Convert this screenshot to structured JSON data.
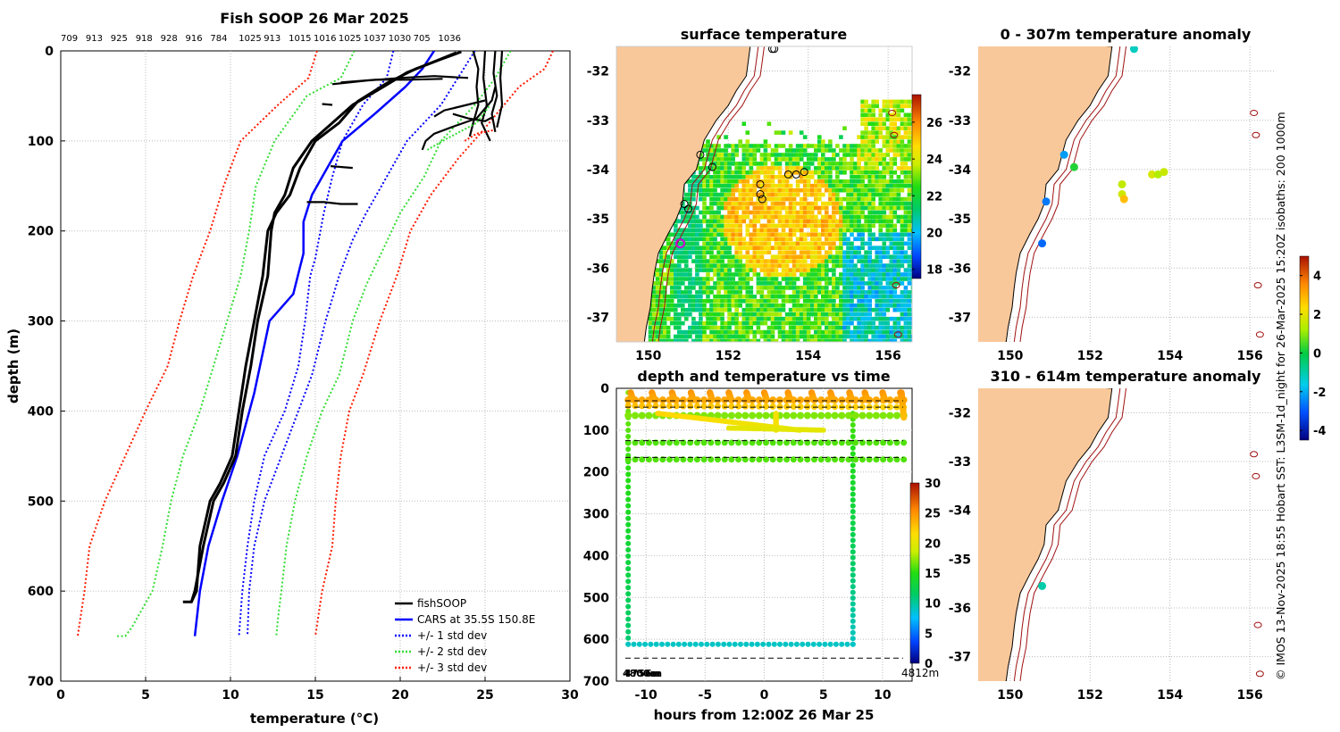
{
  "main_title": "Fish SOOP 26 Mar 2025",
  "drop_ids": [
    "709",
    "913",
    "925",
    "918",
    "928",
    "916",
    "784",
    "1025",
    "913",
    "1015",
    "1016",
    "1025",
    "1037",
    "1030",
    "705",
    "1036"
  ],
  "side_text": "© IMOS 13-Nov-2025 18:55 Hobart SST: L3SM-1d_night for 26-Mar-2025 15:20Z isobaths: 200  1000m",
  "colors": {
    "land": "#f9c89a",
    "fishsoop": "#000000",
    "cars": "#0000ff",
    "std1": "#0000ff",
    "std2": "#33dd33",
    "std3": "#ff1a00",
    "isobath": "#a01010"
  },
  "chart_data": [
    {
      "id": "profile",
      "type": "line",
      "title": "Fish SOOP 26 Mar 2025",
      "xlabel": "temperature (°C)",
      "ylabel": "depth (m)",
      "xlim": [
        0,
        30
      ],
      "ylim": [
        700,
        0
      ],
      "xticks": [
        "0",
        "5",
        "10",
        "15",
        "20",
        "25",
        "30"
      ],
      "yticks": [
        "0",
        "100",
        "200",
        "300",
        "400",
        "500",
        "600",
        "700"
      ],
      "legend": [
        "fishSOOP",
        "CARS at 35.5S 150.8E",
        "+/- 1 std dev",
        "+/- 2 std dev",
        "+/- 3 std dev"
      ],
      "series": [
        {
          "name": "CARS at 35.5S 150.8E",
          "style": "solid",
          "color": "#0000ff",
          "x": [
            22.0,
            21.3,
            20.3,
            18.5,
            16.6,
            15.7,
            14.8,
            14.3,
            14.3,
            13.7,
            12.3,
            11.4,
            10.4,
            9.5,
            8.7,
            8.2,
            7.9
          ],
          "y": [
            0,
            20,
            40,
            70,
            100,
            130,
            160,
            190,
            225,
            270,
            300,
            380,
            450,
            500,
            550,
            600,
            650
          ]
        },
        {
          "name": "+/- 1 std dev",
          "style": "dotted",
          "color": "#0000ff",
          "x": [
            19.6,
            19.2,
            17.8,
            16.6,
            16.0,
            15.5,
            15.2,
            15.0,
            14.7,
            14.4,
            14.0,
            13.2,
            12.0,
            11.4,
            11.0,
            10.7,
            10.5
          ],
          "y": [
            0,
            30,
            60,
            100,
            140,
            180,
            210,
            230,
            250,
            300,
            350,
            400,
            450,
            500,
            550,
            600,
            650
          ]
        },
        {
          "name": "+/- 1 std dev",
          "style": "dotted",
          "color": "#0000ff",
          "x": [
            24.4,
            23.4,
            22.4,
            20.4,
            19.2,
            18.0,
            17.2,
            16.4,
            15.6,
            14.8,
            14.0,
            13.0,
            12.0,
            11.4,
            11.1,
            11.0
          ],
          "y": [
            0,
            30,
            60,
            100,
            140,
            180,
            210,
            250,
            300,
            360,
            400,
            450,
            500,
            550,
            600,
            650
          ],
          "offset": "upper"
        },
        {
          "name": "+/- 2 std dev",
          "style": "dotted",
          "color": "#33dd33",
          "x": [
            17.3,
            16.5,
            14.5,
            12.6,
            11.5,
            11.1,
            10.6,
            9.8,
            9.0,
            8.2,
            7.2,
            6.5,
            6.0,
            5.4,
            4.8,
            4.2,
            3.8,
            3.2
          ],
          "y": [
            0,
            30,
            50,
            100,
            150,
            200,
            250,
            300,
            350,
            400,
            450,
            500,
            550,
            600,
            620,
            640,
            650,
            650
          ]
        },
        {
          "name": "+/- 2 std dev",
          "style": "dotted",
          "color": "#33dd33",
          "x": [
            26.5,
            25.6,
            24.4,
            22.4,
            21.4,
            20.0,
            19.0,
            18.0,
            17.2,
            16.4,
            15.4,
            14.5,
            13.8,
            13.3,
            13.0,
            12.8,
            12.7
          ],
          "y": [
            0,
            30,
            60,
            100,
            140,
            180,
            220,
            260,
            300,
            360,
            400,
            450,
            500,
            550,
            600,
            630,
            650
          ]
        },
        {
          "name": "+/- 3 std dev",
          "style": "dotted",
          "color": "#ff1a00",
          "x": [
            15.1,
            14.6,
            12.8,
            10.6,
            9.6,
            8.8,
            7.8,
            7.0,
            6.3,
            5.0,
            3.8,
            2.6,
            1.7,
            1.4,
            1.0
          ],
          "y": [
            0,
            30,
            60,
            100,
            150,
            200,
            250,
            300,
            350,
            400,
            450,
            500,
            550,
            600,
            650
          ]
        },
        {
          "name": "+/- 3 std dev",
          "style": "dotted",
          "color": "#ff1a00",
          "x": [
            29.0,
            28.5,
            27.0,
            24.8,
            23.4,
            21.8,
            20.6,
            19.8,
            18.8,
            17.8,
            17.0,
            16.5,
            16.2,
            16.0,
            15.4,
            15.0
          ],
          "y": [
            0,
            20,
            40,
            90,
            120,
            160,
            200,
            250,
            300,
            360,
            400,
            450,
            500,
            550,
            600,
            650
          ]
        },
        {
          "name": "fishSOOP",
          "style": "solid",
          "color": "#000000",
          "x": [
            23.3,
            22.0,
            20.4,
            19.0,
            17.2,
            16.0,
            14.8,
            13.7,
            13.2,
            12.6,
            12.4,
            12.2,
            11.6,
            11.2,
            10.7,
            10.3,
            9.6,
            9.0,
            8.4,
            7.9,
            7.7,
            7.2
          ],
          "y": [
            2,
            12,
            24,
            40,
            60,
            80,
            100,
            130,
            160,
            180,
            200,
            250,
            300,
            350,
            400,
            450,
            480,
            500,
            550,
            600,
            612,
            612
          ]
        },
        {
          "name": "fishSOOP",
          "style": "solid",
          "color": "#000000",
          "x": [
            23.6,
            22.3,
            20.9,
            19.2,
            17.5,
            16.4,
            15.0,
            14.1,
            13.5,
            12.7,
            12.2,
            11.9,
            11.4,
            10.9,
            10.5,
            10.1,
            9.4,
            8.8,
            8.2,
            8.0,
            7.7
          ],
          "y": [
            1,
            10,
            20,
            36,
            56,
            80,
            100,
            130,
            160,
            180,
            200,
            250,
            300,
            350,
            400,
            450,
            480,
            500,
            550,
            600,
            612
          ]
        }
      ]
    },
    {
      "id": "sst_map",
      "type": "heatmap",
      "title": "surface temperature",
      "xticks": [
        "150",
        "152",
        "154",
        "156"
      ],
      "yticks": [
        "-32",
        "-33",
        "-34",
        "-35",
        "-36",
        "-37"
      ],
      "colorbar_ticks": [
        "18",
        "20",
        "22",
        "24",
        "26"
      ],
      "clim": [
        17.5,
        27.5
      ],
      "stations": [
        {
          "lon": 151.3,
          "lat": -33.7
        },
        {
          "lon": 151.6,
          "lat": -33.95
        },
        {
          "lon": 150.9,
          "lat": -34.7
        },
        {
          "lon": 151.0,
          "lat": -34.8
        },
        {
          "lon": 152.8,
          "lat": -34.3
        },
        {
          "lon": 152.8,
          "lat": -34.5
        },
        {
          "lon": 152.85,
          "lat": -34.6
        },
        {
          "lon": 153.5,
          "lat": -34.1
        },
        {
          "lon": 153.7,
          "lat": -34.1
        },
        {
          "lon": 153.9,
          "lat": -34.05
        },
        {
          "lon": 153.1,
          "lat": -31.55
        },
        {
          "lon": 153.15,
          "lat": -31.55
        }
      ],
      "current_station": {
        "lon": 150.8,
        "lat": -35.5
      }
    },
    {
      "id": "depth_time",
      "type": "scatter",
      "title": "depth and temperature vs time",
      "xlabel": "hours from 12:00Z 26 Mar 25",
      "xlim": [
        -12.5,
        12.5
      ],
      "ylim": [
        700,
        0
      ],
      "xticks": [
        "-10",
        "-5",
        "0",
        "5",
        "10"
      ],
      "yticks": [
        "0",
        "100",
        "200",
        "300",
        "400",
        "500",
        "600",
        "700"
      ],
      "colorbar_ticks": [
        "0",
        "5",
        "10",
        "15",
        "20",
        "25",
        "30"
      ],
      "clim": [
        0,
        30
      ],
      "annotations": [
        "4812m",
        "4800m",
        "4756m"
      ],
      "dashed_depths": [
        30,
        45,
        125,
        165,
        645
      ]
    },
    {
      "id": "anom_upper",
      "type": "scatter",
      "title": "0 - 307m temperature anomaly",
      "xticks": [
        "150",
        "152",
        "154",
        "156"
      ],
      "yticks": [
        "-32",
        "-33",
        "-34",
        "-35",
        "-36",
        "-37"
      ],
      "colorbar_ticks": [
        "-4",
        "-2",
        "0",
        "2",
        "4"
      ],
      "clim": [
        -4.5,
        5
      ],
      "points": [
        {
          "lon": 153.1,
          "lat": -31.55,
          "v": -1.2
        },
        {
          "lon": 151.35,
          "lat": -33.7,
          "v": -2.2
        },
        {
          "lon": 151.6,
          "lat": -33.95,
          "v": 0.2
        },
        {
          "lon": 150.9,
          "lat": -34.65,
          "v": -2.6
        },
        {
          "lon": 150.8,
          "lat": -35.5,
          "v": -2.8
        },
        {
          "lon": 152.8,
          "lat": -34.3,
          "v": 1.5
        },
        {
          "lon": 152.8,
          "lat": -34.5,
          "v": 1.7
        },
        {
          "lon": 152.85,
          "lat": -34.6,
          "v": 2.8
        },
        {
          "lon": 153.55,
          "lat": -34.1,
          "v": 1.8
        },
        {
          "lon": 153.7,
          "lat": -34.1,
          "v": 1.3
        },
        {
          "lon": 153.85,
          "lat": -34.05,
          "v": 1.6
        }
      ]
    },
    {
      "id": "anom_lower",
      "type": "scatter",
      "title": "310 - 614m temperature anomaly",
      "xticks": [
        "150",
        "152",
        "154",
        "156"
      ],
      "yticks": [
        "-32",
        "-33",
        "-34",
        "-35",
        "-36",
        "-37"
      ],
      "points": [
        {
          "lon": 150.8,
          "lat": -35.55,
          "v": -1.0
        }
      ]
    }
  ]
}
